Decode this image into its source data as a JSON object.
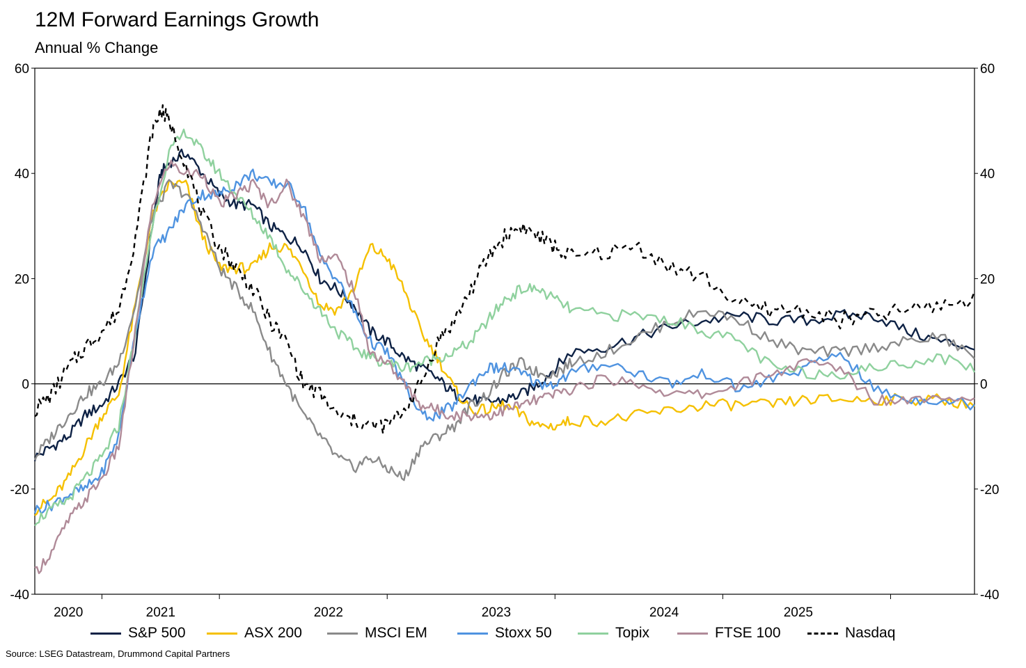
{
  "title": "12M Forward Earnings Growth",
  "subtitle": "Annual % Change",
  "source": "Source: LSEG Datastream, Drummond Capital Partners",
  "chart_data": {
    "type": "line",
    "title": "12M Forward Earnings Growth",
    "subtitle": "Annual % Change",
    "xlabel": "",
    "ylabel": "Annual % Change",
    "xlim": [
      2019.8,
      2025.4
    ],
    "ylim": [
      -40,
      60
    ],
    "y_ticks": [
      -40,
      -20,
      0,
      20,
      40,
      60
    ],
    "y_tick_labels": [
      "-40",
      "-20",
      "0",
      "20",
      "40",
      "60"
    ],
    "x_tick_positions": [
      2020.2,
      2020.9,
      2021.9,
      2022.9,
      2023.9,
      2024.9
    ],
    "x_labels": [
      {
        "x": 2020.0,
        "label": "2020"
      },
      {
        "x": 2020.55,
        "label": "2021"
      },
      {
        "x": 2021.55,
        "label": "2022"
      },
      {
        "x": 2022.55,
        "label": "2023"
      },
      {
        "x": 2023.55,
        "label": "2024"
      },
      {
        "x": 2024.35,
        "label": "2025"
      }
    ],
    "grid": false,
    "zero_line": true,
    "secondary_y_axis": true,
    "legend_position": "bottom",
    "series": [
      {
        "name": "S&P 500",
        "color": "#0e2245",
        "dash": false,
        "x": [
          2019.8,
          2019.9,
          2020.0,
          2020.1,
          2020.2,
          2020.3,
          2020.4,
          2020.5,
          2020.55,
          2020.6,
          2020.7,
          2020.8,
          2020.9,
          2021.0,
          2021.1,
          2021.2,
          2021.3,
          2021.4,
          2021.5,
          2021.6,
          2021.7,
          2021.8,
          2021.9,
          2022.0,
          2022.1,
          2022.2,
          2022.3,
          2022.4,
          2022.5,
          2022.6,
          2022.7,
          2022.8,
          2022.9,
          2023.0,
          2023.2,
          2023.4,
          2023.6,
          2023.8,
          2024.0,
          2024.2,
          2024.4,
          2024.6,
          2024.8,
          2025.0,
          2025.2,
          2025.4
        ],
        "y": [
          -14,
          -12,
          -10,
          -6,
          -4,
          0,
          6,
          30,
          40,
          42,
          44,
          40,
          36,
          34,
          34,
          30,
          28,
          26,
          20,
          18,
          15,
          10,
          8,
          5,
          3,
          1,
          -2,
          -3,
          -3.5,
          -3,
          -2,
          0,
          3,
          6,
          7,
          9,
          11,
          12,
          13,
          12,
          12,
          13,
          13,
          10,
          8,
          7
        ]
      },
      {
        "name": "ASX 200",
        "color": "#f5c000",
        "dash": false,
        "x": [
          2019.8,
          2019.9,
          2020.0,
          2020.1,
          2020.2,
          2020.3,
          2020.4,
          2020.5,
          2020.6,
          2020.7,
          2020.8,
          2020.9,
          2021.0,
          2021.1,
          2021.2,
          2021.3,
          2021.4,
          2021.5,
          2021.6,
          2021.7,
          2021.8,
          2021.9,
          2022.0,
          2022.1,
          2022.2,
          2022.3,
          2022.4,
          2022.5,
          2022.6,
          2022.7,
          2022.8,
          2022.9,
          2023.0,
          2023.2,
          2023.4,
          2023.6,
          2023.8,
          2024.0,
          2024.2,
          2024.4,
          2024.6,
          2024.8,
          2025.0,
          2025.2,
          2025.4
        ],
        "y": [
          -24,
          -22,
          -18,
          -12,
          -6,
          -2,
          15,
          32,
          38,
          38,
          28,
          22,
          22,
          22,
          26,
          26,
          22,
          15,
          14,
          18,
          26,
          24,
          18,
          10,
          5,
          -1,
          -5,
          -5,
          -4,
          -6,
          -8,
          -8,
          -7,
          -7,
          -6,
          -5,
          -4,
          -4,
          -4,
          -3,
          -3,
          -3,
          -3,
          -3,
          -4
        ]
      },
      {
        "name": "MSCI EM",
        "color": "#8a8a8a",
        "dash": false,
        "x": [
          2019.8,
          2019.9,
          2020.0,
          2020.1,
          2020.2,
          2020.3,
          2020.4,
          2020.5,
          2020.6,
          2020.7,
          2020.8,
          2020.9,
          2021.0,
          2021.1,
          2021.2,
          2021.3,
          2021.4,
          2021.5,
          2021.6,
          2021.7,
          2021.8,
          2021.9,
          2022.0,
          2022.1,
          2022.2,
          2022.3,
          2022.4,
          2022.5,
          2022.6,
          2022.7,
          2022.8,
          2022.9,
          2023.0,
          2023.2,
          2023.4,
          2023.6,
          2023.8,
          2024.0,
          2024.2,
          2024.4,
          2024.6,
          2024.8,
          2025.0,
          2025.2,
          2025.4
        ],
        "y": [
          -14,
          -10,
          -6,
          -2,
          0,
          4,
          15,
          32,
          38,
          36,
          30,
          22,
          18,
          14,
          6,
          0,
          -6,
          -10,
          -14,
          -16,
          -14,
          -16,
          -18,
          -12,
          -10,
          -8,
          -4,
          -2,
          2,
          4,
          2,
          2,
          4,
          6,
          9,
          12,
          14,
          12,
          8,
          6,
          6,
          7,
          8,
          9,
          5
        ]
      },
      {
        "name": "Stoxx 50",
        "color": "#4f93e0",
        "dash": false,
        "x": [
          2019.8,
          2019.9,
          2020.0,
          2020.1,
          2020.2,
          2020.3,
          2020.4,
          2020.5,
          2020.6,
          2020.7,
          2020.8,
          2020.9,
          2021.0,
          2021.1,
          2021.2,
          2021.3,
          2021.4,
          2021.5,
          2021.6,
          2021.7,
          2021.8,
          2021.9,
          2022.0,
          2022.1,
          2022.2,
          2022.3,
          2022.4,
          2022.5,
          2022.6,
          2022.7,
          2022.8,
          2022.9,
          2023.0,
          2023.2,
          2023.4,
          2023.6,
          2023.8,
          2024.0,
          2024.2,
          2024.4,
          2024.6,
          2024.8,
          2025.0,
          2025.2,
          2025.4
        ],
        "y": [
          -24,
          -23,
          -21,
          -20,
          -17,
          -10,
          10,
          25,
          29,
          34,
          36,
          36,
          38,
          40,
          38,
          38,
          34,
          24,
          20,
          14,
          8,
          6,
          0,
          -6,
          -6,
          -4,
          0,
          3,
          3,
          2,
          0,
          0,
          2,
          4,
          2,
          0,
          2,
          -1,
          1,
          3,
          6,
          -1,
          -3,
          -3,
          -4
        ]
      },
      {
        "name": "Topix",
        "color": "#8fd19e",
        "dash": false,
        "x": [
          2019.8,
          2019.9,
          2020.0,
          2020.1,
          2020.2,
          2020.3,
          2020.4,
          2020.5,
          2020.6,
          2020.7,
          2020.8,
          2020.9,
          2021.0,
          2021.1,
          2021.2,
          2021.3,
          2021.4,
          2021.5,
          2021.6,
          2021.7,
          2021.8,
          2021.9,
          2022.0,
          2022.1,
          2022.2,
          2022.3,
          2022.4,
          2022.5,
          2022.6,
          2022.7,
          2022.8,
          2022.9,
          2023.0,
          2023.2,
          2023.4,
          2023.6,
          2023.8,
          2024.0,
          2024.2,
          2024.4,
          2024.6,
          2024.8,
          2025.0,
          2025.2,
          2025.4
        ],
        "y": [
          -26,
          -24,
          -22,
          -18,
          -14,
          -8,
          10,
          30,
          44,
          48,
          44,
          40,
          36,
          32,
          28,
          22,
          18,
          14,
          10,
          7,
          5,
          4,
          3,
          4,
          5,
          6,
          8,
          12,
          16,
          18,
          18,
          16,
          14,
          13,
          13,
          12,
          10,
          8,
          3,
          2,
          2,
          3,
          4,
          5,
          3
        ]
      },
      {
        "name": "FTSE 100",
        "color": "#b08a98",
        "dash": false,
        "x": [
          2019.8,
          2019.9,
          2020.0,
          2020.1,
          2020.2,
          2020.3,
          2020.4,
          2020.5,
          2020.6,
          2020.7,
          2020.8,
          2020.9,
          2021.0,
          2021.1,
          2021.2,
          2021.3,
          2021.4,
          2021.5,
          2021.6,
          2021.7,
          2021.8,
          2021.9,
          2022.0,
          2022.1,
          2022.2,
          2022.3,
          2022.4,
          2022.5,
          2022.6,
          2022.7,
          2022.8,
          2022.9,
          2023.0,
          2023.2,
          2023.4,
          2023.6,
          2023.8,
          2024.0,
          2024.2,
          2024.4,
          2024.6,
          2024.8,
          2025.0,
          2025.2,
          2025.4
        ],
        "y": [
          -36,
          -32,
          -26,
          -22,
          -18,
          -12,
          10,
          34,
          42,
          40,
          40,
          34,
          36,
          38,
          34,
          38,
          32,
          24,
          24,
          18,
          6,
          4,
          0,
          -4,
          -5,
          -6,
          -6,
          -6,
          -5,
          -4,
          -3,
          -2,
          -1,
          1,
          0,
          -2,
          -2,
          0,
          2,
          4,
          3,
          -3,
          -3,
          -2,
          -3
        ]
      },
      {
        "name": "Nasdaq",
        "color": "#000000",
        "dash": true,
        "x": [
          2019.8,
          2019.9,
          2020.0,
          2020.1,
          2020.2,
          2020.3,
          2020.4,
          2020.5,
          2020.55,
          2020.6,
          2020.7,
          2020.8,
          2020.9,
          2021.0,
          2021.1,
          2021.2,
          2021.3,
          2021.4,
          2021.5,
          2021.6,
          2021.7,
          2021.8,
          2021.9,
          2022.0,
          2022.1,
          2022.2,
          2022.3,
          2022.4,
          2022.5,
          2022.6,
          2022.7,
          2022.8,
          2022.9,
          2023.0,
          2023.2,
          2023.4,
          2023.6,
          2023.8,
          2024.0,
          2024.2,
          2024.4,
          2024.6,
          2024.8,
          2025.0,
          2025.2,
          2025.4
        ],
        "y": [
          -5,
          -2,
          3,
          7,
          10,
          14,
          28,
          48,
          52,
          50,
          42,
          32,
          26,
          22,
          18,
          12,
          8,
          0,
          -2,
          -6,
          -7,
          -8,
          -8,
          -5,
          0,
          8,
          12,
          18,
          24,
          28,
          30,
          28,
          26,
          24,
          25,
          26,
          22,
          20,
          15,
          14,
          14,
          12,
          13,
          14,
          15,
          16
        ]
      }
    ]
  }
}
